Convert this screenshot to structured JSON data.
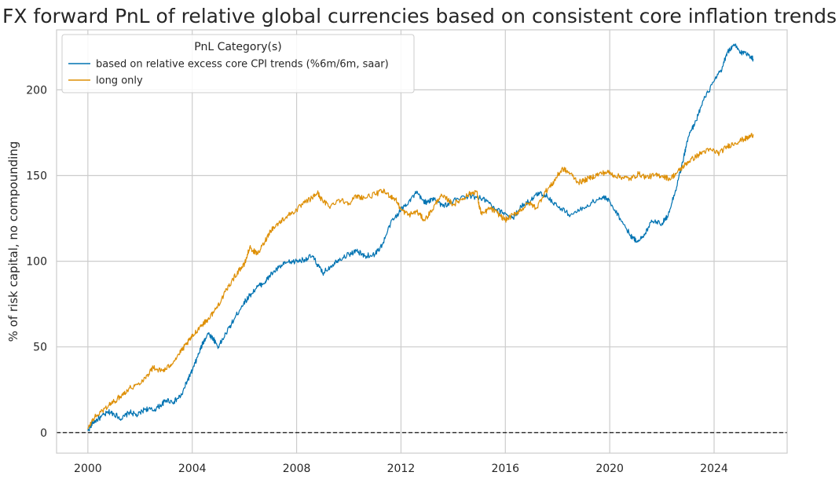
{
  "chart_data": {
    "type": "line",
    "title": "FX forward PnL of relative global currencies based on consistent core inflation trends",
    "xlabel": "",
    "ylabel": "% of risk capital, no compounding",
    "xlim": [
      1998.8,
      2026.8
    ],
    "ylim": [
      -12,
      235
    ],
    "x_ticks": [
      2000,
      2004,
      2008,
      2012,
      2016,
      2020,
      2024
    ],
    "y_ticks": [
      0,
      50,
      100,
      150,
      200
    ],
    "grid": true,
    "reference_line": {
      "y": 0,
      "style": "dashed",
      "color": "#000000"
    },
    "legend": {
      "title": "PnL Category(s)",
      "placement": "top-left"
    },
    "series": [
      {
        "name": "based on relative excess core CPI trends (%6m/6m, saar)",
        "color": "#0173b2",
        "points": [
          [
            2000.0,
            1
          ],
          [
            2000.2,
            6
          ],
          [
            2000.5,
            9
          ],
          [
            2000.8,
            12
          ],
          [
            2001.0,
            11
          ],
          [
            2001.3,
            8
          ],
          [
            2001.6,
            12
          ],
          [
            2001.9,
            10
          ],
          [
            2002.2,
            14
          ],
          [
            2002.5,
            13
          ],
          [
            2002.8,
            16
          ],
          [
            2003.0,
            19
          ],
          [
            2003.3,
            18
          ],
          [
            2003.6,
            22
          ],
          [
            2003.8,
            30
          ],
          [
            2004.0,
            36
          ],
          [
            2004.2,
            44
          ],
          [
            2004.4,
            52
          ],
          [
            2004.6,
            58
          ],
          [
            2004.8,
            55
          ],
          [
            2005.0,
            50
          ],
          [
            2005.3,
            58
          ],
          [
            2005.6,
            66
          ],
          [
            2005.9,
            74
          ],
          [
            2006.2,
            80
          ],
          [
            2006.5,
            85
          ],
          [
            2006.8,
            88
          ],
          [
            2007.0,
            92
          ],
          [
            2007.3,
            96
          ],
          [
            2007.6,
            99
          ],
          [
            2008.0,
            100
          ],
          [
            2008.3,
            101
          ],
          [
            2008.6,
            103
          ],
          [
            2008.8,
            98
          ],
          [
            2009.0,
            93
          ],
          [
            2009.3,
            97
          ],
          [
            2009.6,
            101
          ],
          [
            2010.0,
            104
          ],
          [
            2010.3,
            106
          ],
          [
            2010.6,
            103
          ],
          [
            2011.0,
            104
          ],
          [
            2011.3,
            110
          ],
          [
            2011.6,
            122
          ],
          [
            2012.0,
            130
          ],
          [
            2012.3,
            135
          ],
          [
            2012.6,
            140
          ],
          [
            2012.8,
            136
          ],
          [
            2013.0,
            134
          ],
          [
            2013.3,
            137
          ],
          [
            2013.6,
            132
          ],
          [
            2014.0,
            135
          ],
          [
            2014.5,
            138
          ],
          [
            2015.0,
            137
          ],
          [
            2015.3,
            135
          ],
          [
            2015.6,
            130
          ],
          [
            2016.0,
            128
          ],
          [
            2016.3,
            125
          ],
          [
            2016.6,
            132
          ],
          [
            2017.0,
            136
          ],
          [
            2017.3,
            140
          ],
          [
            2017.6,
            138
          ],
          [
            2018.0,
            132
          ],
          [
            2018.5,
            127
          ],
          [
            2019.0,
            131
          ],
          [
            2019.5,
            136
          ],
          [
            2019.8,
            137
          ],
          [
            2020.0,
            135
          ],
          [
            2020.4,
            125
          ],
          [
            2020.8,
            115
          ],
          [
            2021.0,
            112
          ],
          [
            2021.3,
            114
          ],
          [
            2021.6,
            124
          ],
          [
            2022.0,
            122
          ],
          [
            2022.2,
            126
          ],
          [
            2022.5,
            140
          ],
          [
            2022.8,
            158
          ],
          [
            2023.0,
            172
          ],
          [
            2023.3,
            182
          ],
          [
            2023.6,
            194
          ],
          [
            2024.0,
            205
          ],
          [
            2024.3,
            212
          ],
          [
            2024.5,
            222
          ],
          [
            2024.8,
            226
          ],
          [
            2025.0,
            222
          ],
          [
            2025.3,
            221
          ],
          [
            2025.5,
            218
          ]
        ]
      },
      {
        "name": "long only",
        "color": "#de8f05",
        "points": [
          [
            2000.0,
            2
          ],
          [
            2000.2,
            8
          ],
          [
            2000.5,
            12
          ],
          [
            2000.8,
            16
          ],
          [
            2001.0,
            18
          ],
          [
            2001.3,
            22
          ],
          [
            2001.6,
            26
          ],
          [
            2001.9,
            28
          ],
          [
            2002.2,
            32
          ],
          [
            2002.5,
            38
          ],
          [
            2002.8,
            36
          ],
          [
            2003.0,
            37
          ],
          [
            2003.3,
            42
          ],
          [
            2003.6,
            48
          ],
          [
            2003.8,
            52
          ],
          [
            2004.0,
            56
          ],
          [
            2004.3,
            62
          ],
          [
            2004.6,
            66
          ],
          [
            2004.9,
            72
          ],
          [
            2005.2,
            80
          ],
          [
            2005.5,
            88
          ],
          [
            2005.8,
            95
          ],
          [
            2006.0,
            98
          ],
          [
            2006.2,
            108
          ],
          [
            2006.5,
            104
          ],
          [
            2006.8,
            112
          ],
          [
            2007.0,
            118
          ],
          [
            2007.3,
            122
          ],
          [
            2007.6,
            126
          ],
          [
            2008.0,
            130
          ],
          [
            2008.3,
            134
          ],
          [
            2008.6,
            137
          ],
          [
            2008.8,
            140
          ],
          [
            2009.0,
            135
          ],
          [
            2009.3,
            132
          ],
          [
            2009.6,
            136
          ],
          [
            2010.0,
            134
          ],
          [
            2010.3,
            138
          ],
          [
            2010.6,
            137
          ],
          [
            2011.0,
            139
          ],
          [
            2011.3,
            141
          ],
          [
            2011.6,
            138
          ],
          [
            2011.8,
            136
          ],
          [
            2012.0,
            130
          ],
          [
            2012.3,
            127
          ],
          [
            2012.6,
            129
          ],
          [
            2012.9,
            124
          ],
          [
            2013.2,
            130
          ],
          [
            2013.5,
            138
          ],
          [
            2013.8,
            136
          ],
          [
            2014.0,
            133
          ],
          [
            2014.3,
            136
          ],
          [
            2014.6,
            139
          ],
          [
            2014.9,
            141
          ],
          [
            2015.0,
            132
          ],
          [
            2015.1,
            127
          ],
          [
            2015.4,
            131
          ],
          [
            2015.7,
            128
          ],
          [
            2016.0,
            124
          ],
          [
            2016.3,
            127
          ],
          [
            2016.6,
            130
          ],
          [
            2016.9,
            134
          ],
          [
            2017.2,
            131
          ],
          [
            2017.5,
            140
          ],
          [
            2017.8,
            145
          ],
          [
            2018.0,
            150
          ],
          [
            2018.2,
            154
          ],
          [
            2018.5,
            151
          ],
          [
            2018.8,
            146
          ],
          [
            2019.0,
            147
          ],
          [
            2019.3,
            149
          ],
          [
            2019.6,
            151
          ],
          [
            2019.9,
            152
          ],
          [
            2020.2,
            150
          ],
          [
            2020.5,
            149
          ],
          [
            2020.8,
            148
          ],
          [
            2021.1,
            151
          ],
          [
            2021.4,
            149
          ],
          [
            2021.7,
            150
          ],
          [
            2022.0,
            150
          ],
          [
            2022.3,
            148
          ],
          [
            2022.6,
            152
          ],
          [
            2022.8,
            155
          ],
          [
            2023.0,
            158
          ],
          [
            2023.3,
            161
          ],
          [
            2023.6,
            164
          ],
          [
            2023.9,
            165
          ],
          [
            2024.2,
            163
          ],
          [
            2024.5,
            167
          ],
          [
            2024.8,
            169
          ],
          [
            2025.1,
            171
          ],
          [
            2025.3,
            172
          ],
          [
            2025.5,
            174
          ]
        ]
      }
    ]
  }
}
